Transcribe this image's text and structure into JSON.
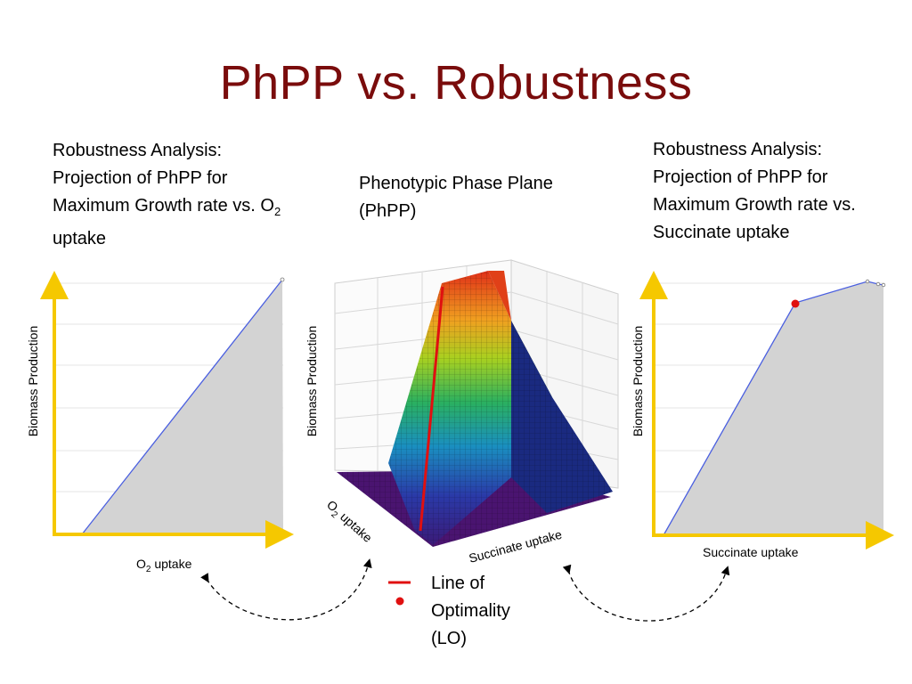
{
  "slide": {
    "title": "PhPP vs. Robustness"
  },
  "captions": {
    "left": [
      "Robustness Analysis:",
      "Projection of PhPP for",
      "Maximum Growth rate vs. O",
      "2",
      "uptake"
    ],
    "middle": [
      "Phenotypic Phase Plane",
      "(PhPP)"
    ],
    "right": [
      "Robustness Analysis:",
      "Projection of PhPP for",
      "Maximum Growth rate vs.",
      "Succinate uptake"
    ]
  },
  "left_plot": {
    "ylabel": "Biomass Production",
    "xlabel_main": "O",
    "xlabel_sub": "2",
    "xlabel_rest": " uptake"
  },
  "middle_plot": {
    "zlabel": "Biomass Production",
    "x_axis_main": "O",
    "x_axis_sub": "2",
    "x_axis_rest": " uptake",
    "y_axis": "Succinate uptake"
  },
  "right_plot": {
    "ylabel": "Biomass Production",
    "xlabel": "Succinate uptake"
  },
  "legend": {
    "lines": [
      "Line of",
      "Optimality",
      "(LO)"
    ]
  },
  "colors": {
    "title": "#7a0c0c",
    "axis_arrow": "#f5c800",
    "fill_region": "#d3d3d3",
    "boundary_line": "#4a5fe0",
    "line_of_optimality": "#e01010"
  },
  "chart_data": [
    {
      "type": "area",
      "xlabel": "O2 uptake",
      "ylabel": "Biomass Production",
      "description_points": {
        "x": [
          0.12,
          1.0
        ],
        "y": [
          0.0,
          1.0
        ]
      },
      "grid": true
    },
    {
      "type": "area",
      "xlabel": "Succinate uptake",
      "ylabel": "Biomass Production",
      "description_points": {
        "x": [
          0.0,
          0.62,
          0.9,
          0.95,
          1.0
        ],
        "y": [
          0.0,
          0.9,
          1.0,
          0.99,
          0.98
        ]
      },
      "highlight_point": {
        "x": 0.62,
        "y": 0.9
      },
      "grid": true
    }
  ]
}
